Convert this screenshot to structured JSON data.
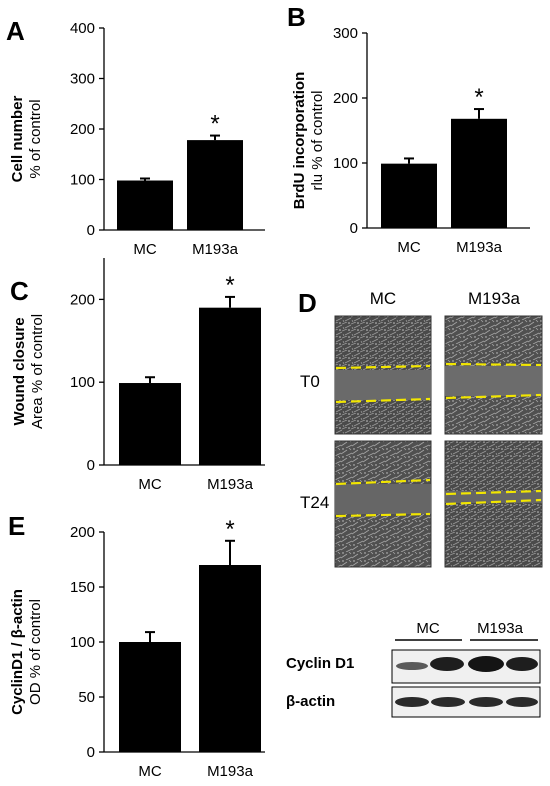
{
  "chart_data": [
    {
      "panel": "A",
      "type": "bar",
      "categories": [
        "MC",
        "M193a"
      ],
      "values": [
        98,
        178
      ],
      "errors": [
        4,
        9
      ],
      "ylabel_bold": "Cell number",
      "ylabel": "% of control",
      "ylim": [
        0,
        400
      ],
      "yticks": [
        0,
        100,
        200,
        300,
        400
      ],
      "significance": [
        "",
        "*"
      ]
    },
    {
      "panel": "B",
      "type": "bar",
      "categories": [
        "MC",
        "M193a"
      ],
      "values": [
        99,
        168
      ],
      "errors": [
        8,
        15
      ],
      "ylabel_bold": "BrdU incorporation",
      "ylabel": "rlu % of control",
      "ylim": [
        0,
        300
      ],
      "yticks": [
        0,
        100,
        200,
        300
      ],
      "significance": [
        "",
        "*"
      ]
    },
    {
      "panel": "C",
      "type": "bar",
      "categories": [
        "MC",
        "M193a"
      ],
      "values": [
        99,
        190
      ],
      "errors": [
        7,
        13
      ],
      "ylabel_bold": "Wound closure",
      "ylabel": "Area % of control",
      "ylim": [
        0,
        250
      ],
      "yticks": [
        0,
        100,
        200
      ],
      "significance": [
        "",
        "*"
      ]
    },
    {
      "panel": "E",
      "type": "bar",
      "categories": [
        "MC",
        "M193a"
      ],
      "values": [
        100,
        170
      ],
      "errors": [
        9,
        22
      ],
      "ylabel_bold": "CyclinD1 / β-actin",
      "ylabel": "OD % of control",
      "ylim": [
        0,
        200
      ],
      "yticks": [
        0,
        50,
        100,
        150,
        200
      ],
      "significance": [
        "",
        "*"
      ]
    }
  ],
  "panel_d": {
    "letter": "D",
    "col_labels": [
      "MC",
      "M193a"
    ],
    "row_labels": [
      "T0",
      "T24"
    ]
  },
  "blot": {
    "group_labels": [
      "MC",
      "M193a"
    ],
    "row_labels": [
      "Cyclin D1",
      "β-actin"
    ]
  },
  "colors": {
    "bar": "#000000",
    "wound_line": "#f2e600",
    "micrograph_bg": "#5a5a5a"
  }
}
